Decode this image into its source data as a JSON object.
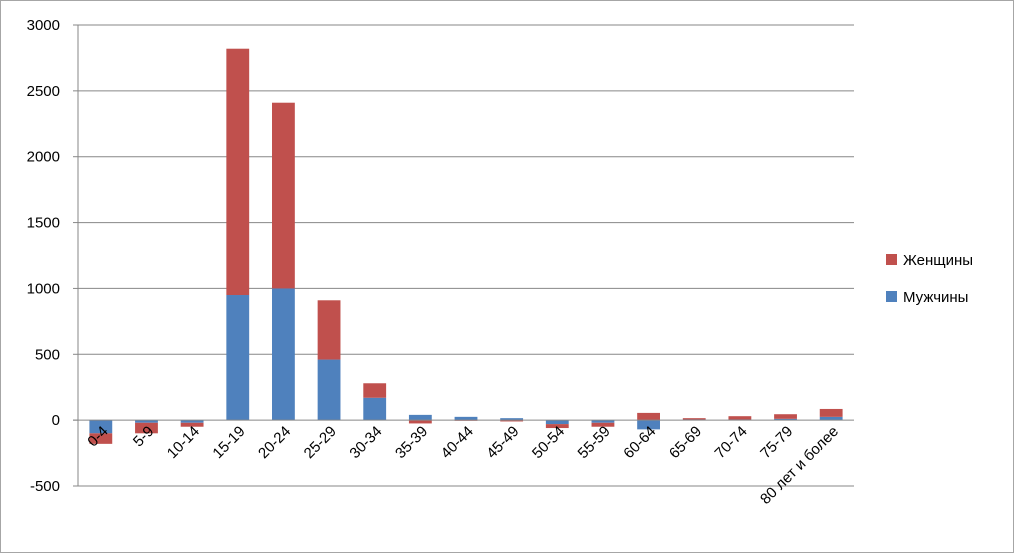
{
  "chart_data": {
    "type": "bar",
    "stacked": true,
    "categories": [
      "0-4",
      "5-9",
      "10-14",
      "15-19",
      "20-24",
      "25-29",
      "30-34",
      "35-39",
      "40-44",
      "45-49",
      "50-54",
      "55-59",
      "60-64",
      "65-69",
      "70-74",
      "75-79",
      "80 лет и более"
    ],
    "series": [
      {
        "name": "Мужчины",
        "color": "#4f81bd",
        "values": [
          -100,
          -20,
          -20,
          950,
          1000,
          460,
          170,
          40,
          25,
          15,
          -30,
          -20,
          -70,
          5,
          5,
          10,
          25
        ]
      },
      {
        "name": "Женщины",
        "color": "#c0504d",
        "values": [
          -80,
          -80,
          -30,
          1870,
          1410,
          450,
          110,
          -25,
          -5,
          -10,
          -30,
          -30,
          55,
          10,
          25,
          35,
          60
        ]
      }
    ],
    "ylim": [
      -500,
      3000
    ],
    "yticks": [
      "-500",
      "0",
      "500",
      "1000",
      "1500",
      "2000",
      "2500",
      "3000"
    ],
    "grid": true,
    "legend": "right"
  }
}
